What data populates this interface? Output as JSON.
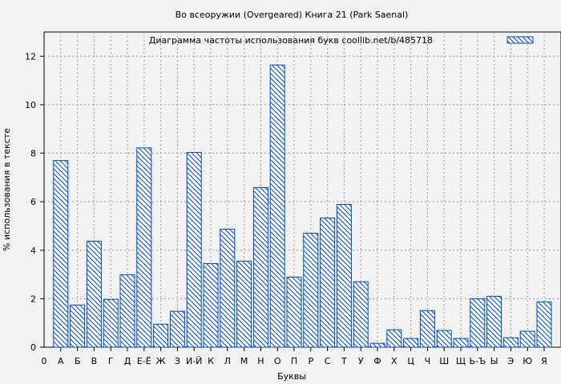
{
  "chart_data": {
    "type": "bar",
    "title": "Во всеоружии (Overgeared) Книга 21 (Park Saenal)",
    "legend": "Диаграмма частоты использования букв  coollib.net/b/485718",
    "legend_position": "top-right",
    "xlabel": "Буквы",
    "ylabel": "% использования в тексте",
    "x_origin_label": "0",
    "categories": [
      "А",
      "Б",
      "В",
      "Г",
      "Д",
      "Е-Ё",
      "Ж",
      "З",
      "И-Й",
      "К",
      "Л",
      "М",
      "Н",
      "О",
      "П",
      "Р",
      "С",
      "Т",
      "У",
      "Ф",
      "Х",
      "Ц",
      "Ч",
      "Ш",
      "Щ",
      "Ь-Ъ",
      "Ы",
      "Э",
      "Ю",
      "Я"
    ],
    "values": [
      7.7,
      1.74,
      4.37,
      1.97,
      2.99,
      8.22,
      0.95,
      1.48,
      8.03,
      3.45,
      4.87,
      3.55,
      6.58,
      11.64,
      2.89,
      4.7,
      5.33,
      5.89,
      2.7,
      0.16,
      0.72,
      0.36,
      1.51,
      0.69,
      0.36,
      2.0,
      2.1,
      0.39,
      0.66,
      1.87
    ],
    "yticks": [
      0,
      2,
      4,
      6,
      8,
      10,
      12
    ],
    "ylim": [
      0,
      13
    ],
    "grid": true,
    "bar_color": "#0047c8"
  }
}
